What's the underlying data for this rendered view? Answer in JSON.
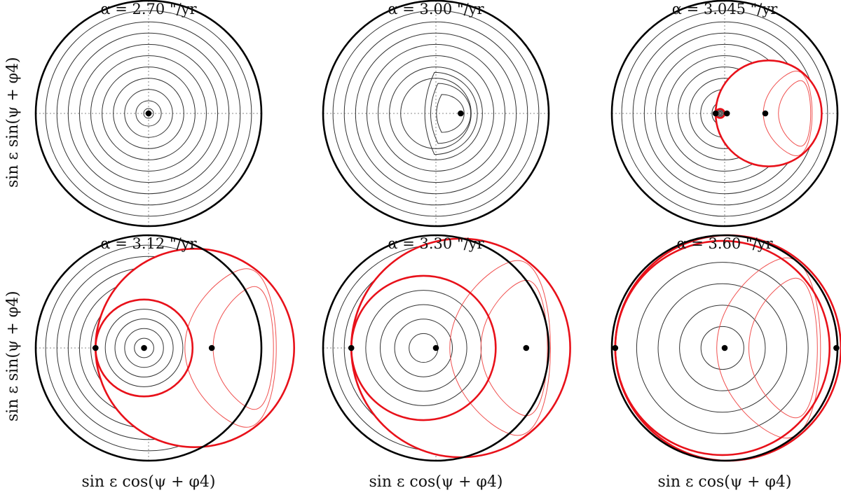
{
  "chart_data": {
    "type": "line",
    "layout": "2x3 grid of polar phase-space panels",
    "xlabel": "sin ε cos(ψ + φ4)",
    "ylabel": "sin ε sin(ψ + φ4)",
    "grid": "dotted axes through panel center",
    "colors": {
      "outer_circle": "#000000",
      "level_curves": "#333333",
      "separatrix": "#e8111a",
      "resonance_curves": "#f0504f",
      "points": "#000000"
    },
    "panels": [
      {
        "title": "α = 2.70 \"/yr",
        "alpha": 2.7,
        "equilibria": [
          [
            0.0,
            0.0
          ]
        ],
        "separatrix_lobes": []
      },
      {
        "title": "α = 3.00 \"/yr",
        "alpha": 3.0,
        "equilibria": [
          [
            0.22,
            0.0
          ]
        ],
        "separatrix_lobes": []
      },
      {
        "title": "α = 3.045 \"/yr",
        "alpha": 3.045,
        "equilibria": [
          [
            -0.08,
            0.0
          ],
          [
            0.02,
            0.0
          ],
          [
            0.36,
            0.0
          ]
        ],
        "separatrix_lobes": [
          {
            "outer": [
              -0.08,
              0.47
            ]
          },
          {
            "inner": [
              -0.08,
              0.04
            ]
          }
        ]
      },
      {
        "title": "α = 3.12 \"/yr",
        "alpha": 3.12,
        "equilibria": [
          [
            -0.47,
            0.0
          ],
          [
            -0.04,
            0.0
          ],
          [
            0.56,
            0.0
          ]
        ],
        "separatrix_lobes": [
          {
            "outer": [
              -0.47,
              0.88
            ]
          },
          {
            "inner": [
              -0.47,
              0.43
            ]
          }
        ]
      },
      {
        "title": "α = 3.30 \"/yr",
        "alpha": 3.3,
        "equilibria": [
          [
            -0.75,
            0.0
          ],
          [
            0.0,
            0.0
          ],
          [
            0.8,
            0.0
          ]
        ],
        "separatrix_lobes": [
          {
            "outer": [
              -0.75,
              0.97
            ]
          },
          {
            "inner": [
              -0.75,
              0.64
            ]
          }
        ]
      },
      {
        "title": "α = 3.60 \"/yr",
        "alpha": 3.6,
        "equilibria": [
          [
            -0.97,
            0.0
          ],
          [
            0.0,
            0.0
          ],
          [
            0.99,
            0.0
          ]
        ],
        "separatrix_lobes": [
          {
            "outer": [
              -0.97,
              1.0
            ]
          },
          {
            "inner": [
              -0.97,
              0.95
            ]
          }
        ]
      }
    ]
  }
}
